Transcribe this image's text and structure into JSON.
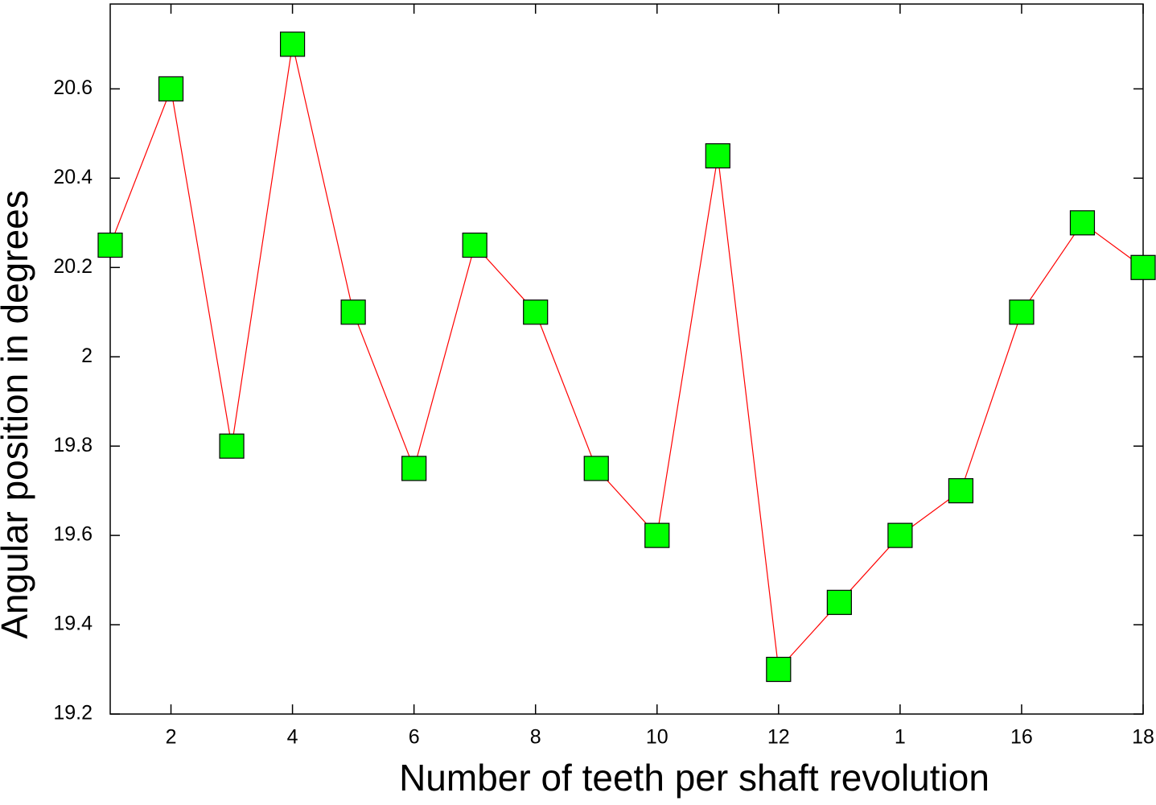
{
  "chart_data": {
    "type": "line",
    "xlabel": "Number of teeth per shaft revolution",
    "ylabel": "Angular position in degrees",
    "x": [
      1,
      2,
      3,
      4,
      5,
      6,
      7,
      8,
      9,
      10,
      11,
      12,
      13,
      14,
      15,
      16,
      17,
      18
    ],
    "values": [
      20.25,
      20.6,
      19.8,
      20.7,
      20.1,
      19.75,
      20.25,
      20.1,
      19.75,
      19.6,
      20.45,
      19.3,
      19.45,
      19.6,
      19.7,
      20.1,
      20.3,
      20.2
    ],
    "color": "#ff0000",
    "marker_color": "#00ff00",
    "marker": "square",
    "xlim": [
      1,
      18
    ],
    "xticks": [
      2,
      4,
      6,
      8,
      10,
      12,
      {
        "value": 14,
        "label": "1"
      },
      16,
      18
    ],
    "ylim": [
      19.2,
      20.79
    ],
    "yticks": [
      19.2,
      19.4,
      19.6,
      19.8,
      {
        "value": 20,
        "label": "2"
      },
      20.2,
      20.4,
      20.6
    ],
    "grid": false
  }
}
